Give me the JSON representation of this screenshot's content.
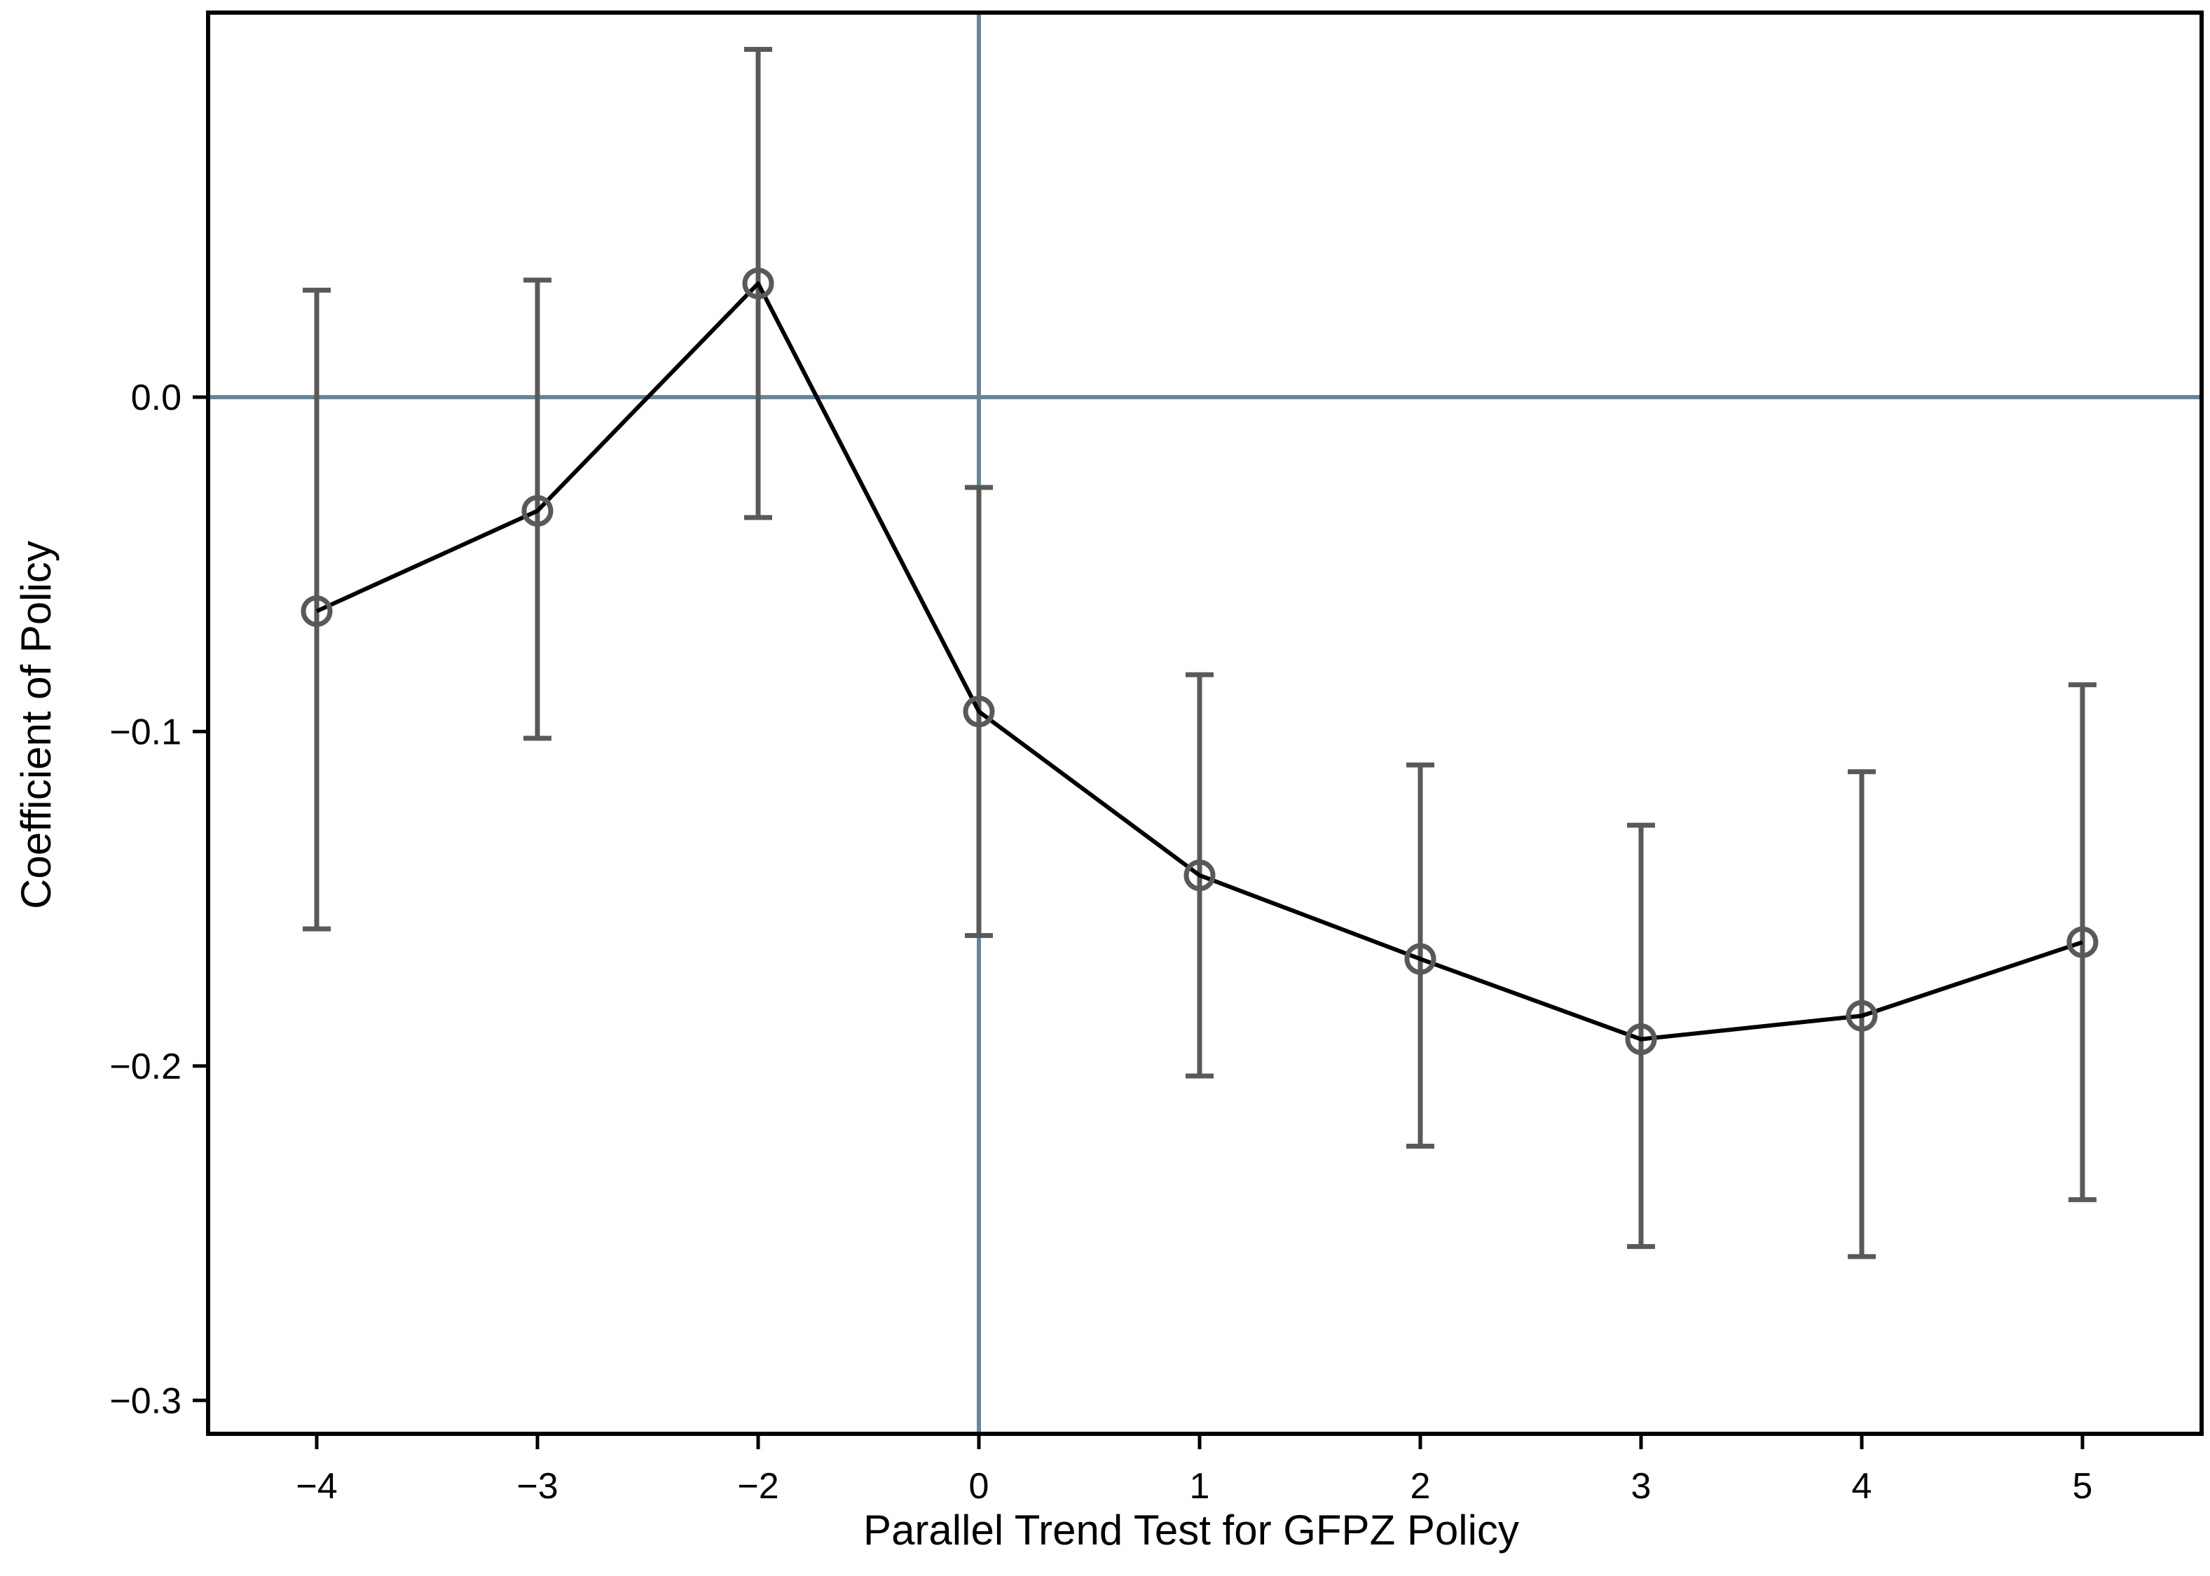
{
  "colors": {
    "background": "#ffffff",
    "frame": "#000000",
    "reference_lines": "#6a8597",
    "ci_bars": "#595959",
    "line": "#000000",
    "markers": "#595959"
  },
  "chart_data": {
    "type": "line",
    "title": "",
    "xlabel": "Parallel Trend Test for GFPZ Policy",
    "ylabel": "Coefficient of Policy",
    "categories": [
      "−4",
      "−3",
      "−2",
      "0",
      "1",
      "2",
      "3",
      "4",
      "5"
    ],
    "x_tick_labels": [
      "−4",
      "−3",
      "−2",
      "0",
      "1",
      "2",
      "3",
      "4",
      "5"
    ],
    "y_ticks": [
      0.0,
      -0.1,
      -0.2,
      -0.3
    ],
    "y_tick_labels": [
      "0.0",
      "−0.1",
      "−0.2",
      "−0.3"
    ],
    "ylim": [
      -0.31,
      0.115
    ],
    "reference_lines": {
      "y": 0.0,
      "x": "0"
    },
    "grid": false,
    "legend": "none",
    "marker": "hollow-circle",
    "series": [
      {
        "values": [
          -0.064,
          -0.034,
          0.034,
          -0.094,
          -0.143,
          -0.168,
          -0.192,
          -0.185,
          -0.163
        ],
        "ci_low": [
          -0.159,
          -0.102,
          -0.036,
          -0.161,
          -0.203,
          -0.224,
          -0.254,
          -0.257,
          -0.24
        ],
        "ci_high": [
          0.032,
          0.035,
          0.104,
          -0.027,
          -0.083,
          -0.11,
          -0.128,
          -0.112,
          -0.086
        ]
      }
    ]
  }
}
